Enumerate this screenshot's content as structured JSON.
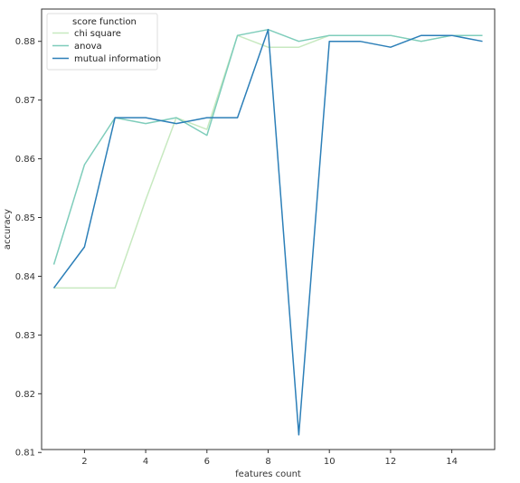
{
  "chart_data": {
    "type": "line",
    "xlabel": "features count",
    "ylabel": "accuracy",
    "xlim": [
      0.6,
      15.4
    ],
    "ylim": [
      0.8105,
      0.8855
    ],
    "x_ticks": [
      2,
      4,
      6,
      8,
      10,
      12,
      14
    ],
    "x_tick_labels": [
      "2",
      "4",
      "6",
      "8",
      "10",
      "12",
      "14"
    ],
    "y_ticks": [
      0.81,
      0.82,
      0.83,
      0.84,
      0.85,
      0.86,
      0.87,
      0.88
    ],
    "y_tick_labels": [
      "0.81",
      "0.82",
      "0.83",
      "0.84",
      "0.85",
      "0.86",
      "0.87",
      "0.88"
    ],
    "grid": false,
    "legend": {
      "title": "score function",
      "position": "top-left"
    },
    "x": [
      1,
      2,
      3,
      4,
      5,
      6,
      7,
      8,
      9,
      10,
      11,
      12,
      13,
      14,
      15
    ],
    "series": [
      {
        "name": "chi square",
        "color": "#c7e9c0",
        "values": [
          0.838,
          0.838,
          0.838,
          0.853,
          0.867,
          0.865,
          0.881,
          0.879,
          0.879,
          0.881,
          0.881,
          0.881,
          0.88,
          0.881,
          0.881
        ]
      },
      {
        "name": "anova",
        "color": "#7fcdbb",
        "values": [
          0.842,
          0.859,
          0.867,
          0.866,
          0.867,
          0.864,
          0.881,
          0.882,
          0.88,
          0.881,
          0.881,
          0.881,
          0.88,
          0.881,
          0.881
        ]
      },
      {
        "name": "mutual information",
        "color": "#2c7fb8",
        "values": [
          0.838,
          0.845,
          0.867,
          0.867,
          0.866,
          0.867,
          0.867,
          0.882,
          0.813,
          0.88,
          0.88,
          0.879,
          0.881,
          0.881,
          0.88
        ]
      }
    ]
  }
}
